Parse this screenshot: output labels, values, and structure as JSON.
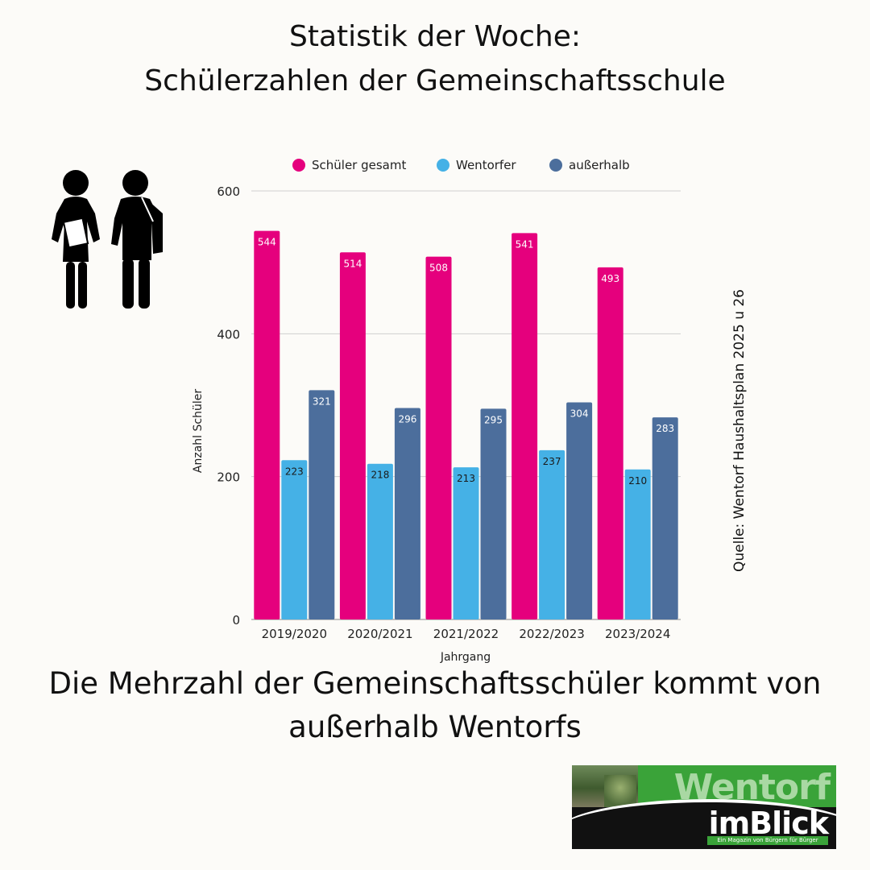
{
  "header": {
    "title_line1": "Statistik der Woche:",
    "title_line2": "Schülerzahlen der Gemeinschaftsschule"
  },
  "source": "Quelle: Wentorf Haushaltsplan 2025 u 26",
  "conclusion": {
    "line1": "Die Mehrzahl der Gemeinschaftsschüler kommt von",
    "line2": "außerhalb Wentorfs"
  },
  "logo": {
    "brand": "Wentorf",
    "name": "imBlick",
    "tagline": "Ein Magazin von Bürgern für Bürger"
  },
  "icons": {
    "people": "students-icon"
  },
  "chart_data": {
    "type": "bar",
    "title": "",
    "xlabel": "Jahrgang",
    "ylabel": "Anzahl Schüler",
    "ylim": [
      0,
      600
    ],
    "yticks": [
      0,
      200,
      400,
      600
    ],
    "grid": true,
    "legend_position": "top",
    "categories": [
      "2019/2020",
      "2020/2021",
      "2021/2022",
      "2022/2023",
      "2023/2024"
    ],
    "series": [
      {
        "name": "Schüler gesamt",
        "color": "#e5007d",
        "label_color": "#ffffff",
        "values": [
          544,
          514,
          508,
          541,
          493
        ]
      },
      {
        "name": "Wentorfer",
        "color": "#45b1e6",
        "label_color": "#1a1a1a",
        "values": [
          223,
          218,
          213,
          237,
          210
        ]
      },
      {
        "name": "außerhalb",
        "color": "#4c6e9c",
        "label_color": "#ffffff",
        "values": [
          321,
          296,
          295,
          304,
          283
        ]
      }
    ]
  }
}
